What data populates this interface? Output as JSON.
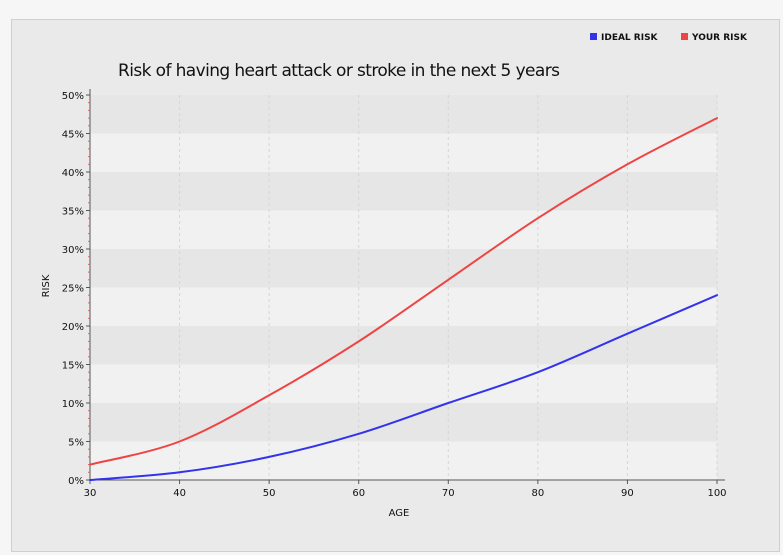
{
  "chart_data": {
    "type": "line",
    "title": "Risk of having heart attack or stroke in the next 5 years",
    "xlabel": "AGE",
    "ylabel": "RISK",
    "x": [
      30,
      40,
      50,
      60,
      70,
      80,
      90,
      100
    ],
    "xlim": [
      30,
      100
    ],
    "ylim": [
      0,
      50
    ],
    "x_ticks": [
      "30",
      "40",
      "50",
      "60",
      "70",
      "80",
      "90",
      "100"
    ],
    "y_ticks": [
      "0%",
      "5%",
      "10%",
      "15%",
      "20%",
      "25%",
      "30%",
      "35%",
      "40%",
      "45%",
      "50%"
    ],
    "grid": true,
    "legend_position": "top-right",
    "series": [
      {
        "name": "IDEAL RISK",
        "color": "#3333ee",
        "values": [
          0,
          1,
          3,
          6,
          10,
          14,
          19,
          24
        ]
      },
      {
        "name": "YOUR RISK",
        "color": "#ee4444",
        "values": [
          2,
          5,
          11,
          18,
          26,
          34,
          41,
          47
        ]
      }
    ]
  }
}
